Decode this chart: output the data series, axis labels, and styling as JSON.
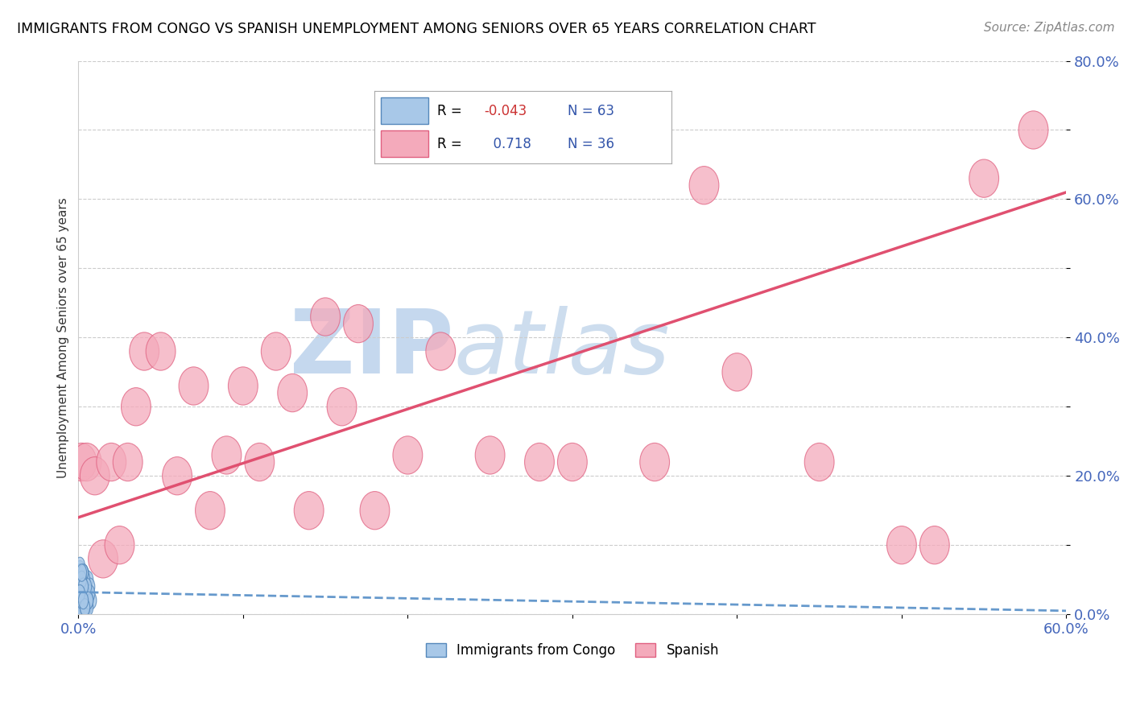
{
  "title": "IMMIGRANTS FROM CONGO VS SPANISH UNEMPLOYMENT AMONG SENIORS OVER 65 YEARS CORRELATION CHART",
  "source": "Source: ZipAtlas.com",
  "ylabel": "Unemployment Among Seniors over 65 years",
  "xlim": [
    0.0,
    0.6
  ],
  "ylim": [
    0.0,
    0.8
  ],
  "xticks": [
    0.0,
    0.1,
    0.2,
    0.3,
    0.4,
    0.5,
    0.6
  ],
  "xtick_labels": [
    "0.0%",
    "",
    "",
    "",
    "",
    "",
    "60.0%"
  ],
  "yticks": [
    0.0,
    0.1,
    0.2,
    0.3,
    0.4,
    0.5,
    0.6,
    0.7,
    0.8
  ],
  "ytick_labels": [
    "0.0%",
    "",
    "20.0%",
    "",
    "40.0%",
    "",
    "60.0%",
    "",
    "80.0%"
  ],
  "color_blue": "#a8c8e8",
  "color_pink": "#f4aabb",
  "edge_blue": "#5588bb",
  "edge_pink": "#e06080",
  "line_blue_color": "#6699cc",
  "line_pink_color": "#e05070",
  "watermark_zip": "ZIP",
  "watermark_atlas": "atlas",
  "watermark_color": "#d0dff0",
  "blue_points_x": [
    0.001,
    0.002,
    0.001,
    0.003,
    0.002,
    0.004,
    0.001,
    0.005,
    0.002,
    0.003,
    0.001,
    0.006,
    0.003,
    0.002,
    0.004,
    0.001,
    0.007,
    0.003,
    0.002,
    0.005,
    0.001,
    0.004,
    0.002,
    0.003,
    0.006,
    0.001,
    0.008,
    0.002,
    0.004,
    0.003,
    0.001,
    0.005,
    0.002,
    0.006,
    0.003,
    0.001,
    0.004,
    0.007,
    0.002,
    0.003,
    0.001,
    0.005,
    0.002,
    0.004,
    0.003,
    0.001,
    0.006,
    0.002,
    0.003,
    0.004,
    0.001,
    0.002,
    0.005,
    0.003,
    0.001,
    0.004,
    0.002,
    0.006,
    0.003,
    0.001,
    0.002,
    0.004,
    0.003
  ],
  "blue_points_y": [
    0.005,
    0.015,
    0.025,
    0.035,
    0.045,
    0.055,
    0.065,
    0.01,
    0.02,
    0.03,
    0.04,
    0.05,
    0.06,
    0.02,
    0.03,
    0.01,
    0.04,
    0.05,
    0.03,
    0.02,
    0.06,
    0.01,
    0.04,
    0.02,
    0.03,
    0.05,
    0.02,
    0.01,
    0.03,
    0.04,
    0.06,
    0.02,
    0.03,
    0.01,
    0.05,
    0.04,
    0.02,
    0.03,
    0.01,
    0.06,
    0.04,
    0.02,
    0.05,
    0.03,
    0.01,
    0.07,
    0.02,
    0.04,
    0.03,
    0.05,
    0.01,
    0.02,
    0.04,
    0.06,
    0.03,
    0.01,
    0.05,
    0.02,
    0.04,
    0.03,
    0.06,
    0.01,
    0.02
  ],
  "pink_points_x": [
    0.002,
    0.005,
    0.01,
    0.015,
    0.02,
    0.025,
    0.03,
    0.035,
    0.04,
    0.05,
    0.06,
    0.07,
    0.08,
    0.09,
    0.1,
    0.11,
    0.12,
    0.13,
    0.14,
    0.15,
    0.16,
    0.17,
    0.18,
    0.2,
    0.22,
    0.25,
    0.28,
    0.3,
    0.35,
    0.38,
    0.4,
    0.45,
    0.5,
    0.52,
    0.55,
    0.58
  ],
  "pink_points_y": [
    0.22,
    0.22,
    0.2,
    0.08,
    0.22,
    0.1,
    0.22,
    0.3,
    0.38,
    0.38,
    0.2,
    0.33,
    0.15,
    0.23,
    0.33,
    0.22,
    0.38,
    0.32,
    0.15,
    0.43,
    0.3,
    0.42,
    0.15,
    0.23,
    0.38,
    0.23,
    0.22,
    0.22,
    0.22,
    0.62,
    0.35,
    0.22,
    0.1,
    0.1,
    0.63,
    0.7
  ],
  "pink_line_x0": 0.0,
  "pink_line_y0": 0.14,
  "pink_line_x1": 0.6,
  "pink_line_y1": 0.61,
  "blue_line_x0": 0.0,
  "blue_line_y0": 0.032,
  "blue_line_x1": 0.6,
  "blue_line_y1": 0.005
}
